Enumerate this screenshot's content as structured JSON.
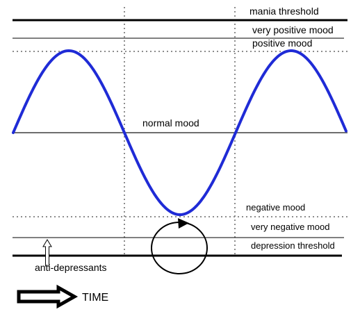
{
  "diagram": {
    "labels": {
      "mania_threshold": "mania threshold",
      "very_positive_mood": "very positive mood",
      "positive_mood": "positive mood",
      "normal_mood": "normal mood",
      "negative_mood": "negative mood",
      "very_negative_mood": "very negative mood",
      "depression_threshold": "depression threshold",
      "anti_depressants": "anti-depressants",
      "time": "TIME"
    },
    "colors": {
      "wave": "#1f2bd6",
      "lines": "#000000",
      "normal_line": "#6e6e6e",
      "dotted": "#8c8c8c"
    },
    "icons": {
      "time_arrow": "right-outline-arrow-icon",
      "anti_depressant_arrow": "up-outline-arrow-icon",
      "cycle": "circular-arrow-icon"
    }
  }
}
